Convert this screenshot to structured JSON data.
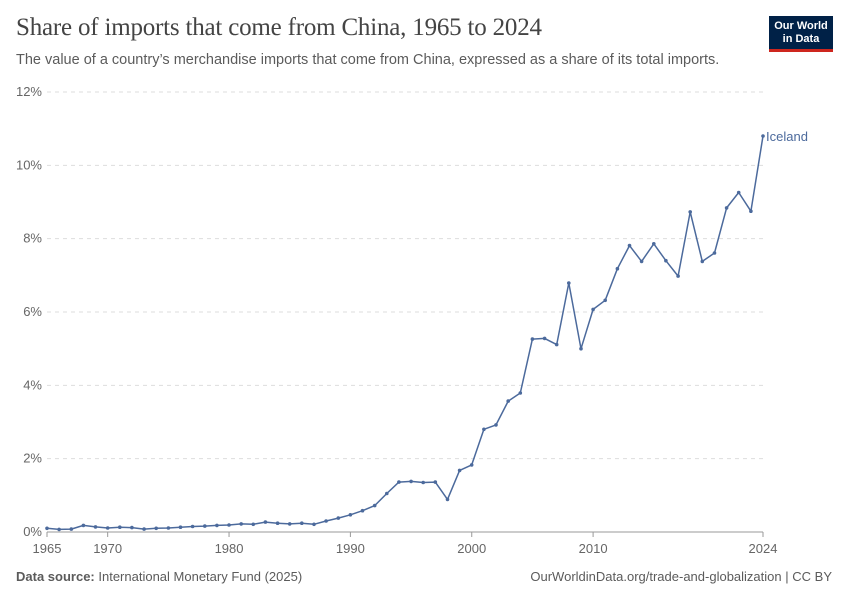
{
  "header": {
    "title": "Share of imports that come from China, 1965 to 2024",
    "subtitle": "The value of a country’s merchandise imports that come from China, expressed as a share of its total imports."
  },
  "logo": {
    "line1": "Our World",
    "line2": "in Data"
  },
  "footer": {
    "source_label": "Data source:",
    "source_text": "International Monetary Fund (2025)",
    "url": "OurWorldinData.org/trade-and-globalization",
    "separator": "|",
    "license": "CC BY"
  },
  "colors": {
    "series": "#4c6a9c",
    "logo_bg": "#002147",
    "logo_accent": "#ce261e"
  },
  "chart_data": {
    "type": "line",
    "title": "Share of imports that come from China, 1965 to 2024",
    "xlabel": "",
    "ylabel": "",
    "ylim": [
      0,
      12
    ],
    "xlim": [
      1965,
      2024
    ],
    "y_ticks": [
      0,
      2,
      4,
      6,
      8,
      10,
      12
    ],
    "y_tick_labels": [
      "0%",
      "2%",
      "4%",
      "6%",
      "8%",
      "10%",
      "12%"
    ],
    "x_ticks": [
      1965,
      1970,
      1980,
      1990,
      2000,
      2010,
      2024
    ],
    "x_tick_labels": [
      "1965",
      "1970",
      "1980",
      "1990",
      "2000",
      "2010",
      "2024"
    ],
    "grid": "horizontal-dashed",
    "series": [
      {
        "name": "Iceland",
        "x": [
          1965,
          1966,
          1967,
          1968,
          1969,
          1970,
          1971,
          1972,
          1973,
          1974,
          1975,
          1976,
          1977,
          1978,
          1979,
          1980,
          1981,
          1982,
          1983,
          1984,
          1985,
          1986,
          1987,
          1988,
          1989,
          1990,
          1991,
          1992,
          1993,
          1994,
          1995,
          1996,
          1997,
          1998,
          1999,
          2000,
          2001,
          2002,
          2003,
          2004,
          2005,
          2006,
          2007,
          2008,
          2009,
          2010,
          2011,
          2012,
          2013,
          2014,
          2015,
          2016,
          2017,
          2018,
          2019,
          2020,
          2021,
          2022,
          2023,
          2024
        ],
        "values": [
          0.1,
          0.07,
          0.08,
          0.18,
          0.14,
          0.11,
          0.13,
          0.12,
          0.08,
          0.1,
          0.11,
          0.13,
          0.15,
          0.16,
          0.18,
          0.19,
          0.22,
          0.21,
          0.27,
          0.24,
          0.22,
          0.24,
          0.21,
          0.3,
          0.38,
          0.47,
          0.58,
          0.72,
          1.05,
          1.36,
          1.38,
          1.35,
          1.36,
          0.89,
          1.68,
          1.83,
          2.8,
          2.92,
          3.57,
          3.79,
          5.26,
          5.28,
          5.11,
          6.79,
          5.0,
          6.07,
          6.32,
          7.18,
          7.81,
          7.38,
          7.86,
          7.4,
          6.98,
          8.73,
          7.38,
          7.61,
          8.84,
          9.26,
          8.75,
          10.8
        ]
      }
    ]
  }
}
